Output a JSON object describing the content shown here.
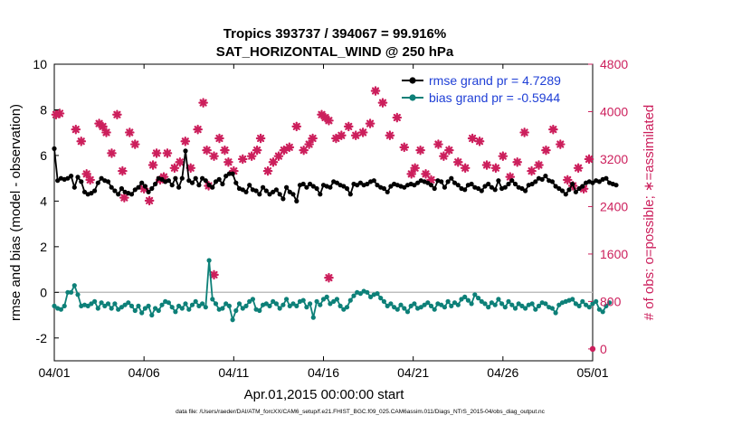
{
  "chart_data": {
    "type": "line",
    "title_lines": [
      "Tropics 393737 / 394067 = 99.916%",
      "SAT_HORIZONTAL_WIND @ 250 hPa"
    ],
    "xlabel": "Apr.01,2015 00:00:00 start",
    "ylabel_left": "rmse and bias (model - observation)",
    "ylabel_right": "# of obs: o=possible; ∗=assimilated",
    "footnote": "data file: /Users/raeder/DAI/ATM_forcXX/CAM6_setup/f.e21.FHIST_BGC.f09_025.CAM6assim.011/Diags_NTrS_2015-04/obs_diag_output.nc",
    "x_ticks": [
      "04/01",
      "04/06",
      "04/11",
      "04/16",
      "04/21",
      "04/26",
      "05/01"
    ],
    "x_tick_days": [
      0,
      5,
      10,
      15,
      20,
      25,
      30
    ],
    "xlim_days": [
      0,
      30
    ],
    "ylim_left": [
      -3,
      10
    ],
    "y_ticks_left": [
      -2,
      0,
      2,
      4,
      6,
      8,
      10
    ],
    "ylim_right": [
      -200,
      4800
    ],
    "y_ticks_right": [
      0,
      800,
      1600,
      2400,
      3200,
      4000,
      4800
    ],
    "legend_position": "top-right",
    "colors": {
      "rmse": "#000000",
      "bias": "#0d8078",
      "obs": "#cc1f5c",
      "right_axis": "#cc1f5c",
      "legend_text": "#1f3fd6",
      "zero_line": "#bfbfbf"
    },
    "series": [
      {
        "name": "rmse grand pr = 4.7289",
        "axis": "left",
        "values": [
          6.3,
          4.9,
          5.0,
          4.95,
          5.0,
          5.1,
          4.6,
          5.05,
          4.85,
          4.4,
          4.3,
          4.35,
          4.45,
          4.8,
          5.0,
          4.9,
          4.85,
          4.6,
          4.45,
          4.3,
          4.55,
          4.4,
          4.35,
          4.3,
          4.5,
          4.6,
          4.8,
          4.65,
          4.4,
          4.55,
          4.75,
          5.0,
          4.95,
          4.85,
          4.9,
          4.7,
          5.0,
          4.6,
          5.0,
          6.2,
          4.9,
          4.8,
          5.0,
          4.7,
          5.0,
          4.9,
          4.7,
          4.6,
          4.85,
          4.95,
          4.75,
          5.1,
          5.2,
          5.2,
          4.8,
          4.55,
          4.5,
          4.4,
          4.7,
          4.5,
          4.45,
          4.3,
          4.6,
          4.45,
          4.3,
          4.4,
          4.5,
          4.3,
          4.1,
          4.6,
          4.4,
          4.3,
          4.0,
          4.7,
          4.75,
          4.6,
          4.75,
          4.65,
          4.55,
          4.3,
          4.7,
          4.65,
          4.6,
          4.85,
          4.8,
          4.7,
          4.65,
          4.55,
          4.3,
          4.75,
          4.7,
          4.8,
          4.7,
          4.75,
          4.85,
          4.9,
          4.7,
          4.6,
          4.55,
          4.4,
          4.65,
          4.75,
          4.7,
          4.65,
          4.6,
          4.7,
          4.75,
          4.7,
          4.8,
          4.9,
          4.85,
          4.8,
          4.7,
          4.55,
          4.9,
          4.85,
          4.6,
          4.85,
          5.0,
          4.8,
          4.7,
          4.55,
          4.5,
          4.7,
          4.75,
          4.6,
          4.55,
          4.45,
          4.65,
          4.75,
          4.6,
          4.5,
          4.9,
          4.55,
          4.6,
          4.75,
          4.9,
          4.75,
          4.6,
          4.55,
          4.45,
          4.7,
          4.75,
          4.85,
          5.0,
          4.95,
          5.1,
          4.9,
          4.85,
          4.65,
          4.55,
          4.45,
          4.3,
          4.5,
          4.75,
          4.4,
          4.55,
          4.65,
          4.8,
          4.85,
          4.8,
          4.9,
          4.85,
          4.95,
          5.0,
          4.8,
          4.75,
          4.7
        ],
        "x_start_day": 0,
        "x_step_days": 0.1875
      },
      {
        "name": "bias grand pr = -0.5944",
        "axis": "left",
        "values": [
          -0.6,
          -0.7,
          -0.75,
          -0.6,
          0.0,
          0.0,
          0.3,
          -0.1,
          -0.6,
          -0.55,
          -0.6,
          -0.5,
          -0.4,
          -0.7,
          -0.45,
          -0.6,
          -0.5,
          -0.7,
          -0.5,
          -0.75,
          -0.65,
          -0.55,
          -0.45,
          -0.6,
          -0.8,
          -0.6,
          -0.9,
          -0.7,
          -0.6,
          -1.0,
          -0.7,
          -0.8,
          -0.55,
          -0.4,
          -0.45,
          -0.65,
          -0.85,
          -0.6,
          -0.7,
          -0.5,
          -0.75,
          -0.55,
          -0.4,
          -0.6,
          -0.5,
          -0.65,
          1.4,
          -0.3,
          -0.5,
          -0.75,
          -0.7,
          -0.5,
          -0.6,
          -1.2,
          -0.8,
          -0.5,
          -0.7,
          -0.6,
          -0.4,
          -0.3,
          -0.75,
          -0.8,
          -0.55,
          -0.5,
          -0.6,
          -0.4,
          -0.5,
          -0.7,
          -0.55,
          -0.3,
          -0.6,
          -0.5,
          -0.6,
          -0.4,
          -0.35,
          -0.65,
          -0.5,
          -1.1,
          -0.4,
          -0.55,
          -0.3,
          -0.2,
          -0.5,
          -0.4,
          -0.3,
          -0.6,
          -0.75,
          -0.65,
          -0.35,
          -0.15,
          0.0,
          -0.05,
          0.05,
          0.0,
          -0.2,
          -0.1,
          -0.05,
          -0.25,
          -0.4,
          -0.6,
          -0.5,
          -0.65,
          -0.75,
          -0.55,
          -0.7,
          -0.85,
          -0.6,
          -0.5,
          -0.7,
          -0.65,
          -0.55,
          -0.45,
          -0.6,
          -0.75,
          -0.5,
          -0.55,
          -0.65,
          -0.4,
          -0.6,
          -0.45,
          -0.55,
          -0.3,
          -0.2,
          -0.35,
          -0.5,
          -0.1,
          -0.25,
          -0.4,
          -0.5,
          -0.65,
          -0.45,
          -0.55,
          -0.3,
          -0.5,
          -0.65,
          -0.4,
          -0.55,
          -0.7,
          -0.5,
          -0.6,
          -0.7,
          -0.55,
          -0.5,
          -0.75,
          -0.6,
          -0.45,
          -0.5,
          -0.65,
          -0.7,
          -0.9,
          -0.55,
          -0.45,
          -0.4,
          -0.35,
          -0.3,
          -0.5,
          -0.6,
          -0.4,
          -0.55,
          -0.65,
          -0.5,
          -0.4,
          -0.75,
          -0.85,
          -0.6,
          -0.45
        ],
        "x_start_day": 0,
        "x_step_days": 0.1875
      },
      {
        "name": "",
        "kind": "obs_assimilated",
        "axis": "right",
        "points": [
          [
            0.1,
            3950
          ],
          [
            0.3,
            3970
          ],
          [
            1.2,
            3700
          ],
          [
            1.5,
            3500
          ],
          [
            1.8,
            2950
          ],
          [
            2.0,
            2850
          ],
          [
            2.5,
            3800
          ],
          [
            2.7,
            3750
          ],
          [
            2.9,
            3650
          ],
          [
            3.2,
            3300
          ],
          [
            3.5,
            3950
          ],
          [
            3.8,
            3000
          ],
          [
            3.9,
            2550
          ],
          [
            4.2,
            3650
          ],
          [
            4.5,
            3450
          ],
          [
            5.0,
            2700
          ],
          [
            5.3,
            2500
          ],
          [
            5.5,
            3100
          ],
          [
            5.7,
            3300
          ],
          [
            5.9,
            2850
          ],
          [
            6.1,
            2900
          ],
          [
            6.3,
            3300
          ],
          [
            6.7,
            3050
          ],
          [
            7.0,
            3150
          ],
          [
            7.3,
            3500
          ],
          [
            7.6,
            3050
          ],
          [
            8.0,
            3700
          ],
          [
            8.3,
            4150
          ],
          [
            8.5,
            3350
          ],
          [
            8.6,
            2750
          ],
          [
            8.9,
            3250
          ],
          [
            9.2,
            3550
          ],
          [
            9.5,
            3350
          ],
          [
            9.7,
            3150
          ],
          [
            10.0,
            3000
          ],
          [
            10.5,
            3200
          ],
          [
            11.0,
            3250
          ],
          [
            11.3,
            3350
          ],
          [
            11.5,
            3550
          ],
          [
            11.9,
            3000
          ],
          [
            12.2,
            3150
          ],
          [
            12.5,
            3250
          ],
          [
            12.8,
            3350
          ],
          [
            13.1,
            3400
          ],
          [
            13.5,
            3750
          ],
          [
            13.9,
            3350
          ],
          [
            14.2,
            3450
          ],
          [
            14.4,
            3550
          ],
          [
            14.9,
            3950
          ],
          [
            15.1,
            3900
          ],
          [
            15.3,
            3850
          ],
          [
            15.7,
            3550
          ],
          [
            16.0,
            3600
          ],
          [
            16.4,
            3750
          ],
          [
            16.8,
            3600
          ],
          [
            17.2,
            3650
          ],
          [
            17.6,
            3800
          ],
          [
            17.9,
            4350
          ],
          [
            18.3,
            4150
          ],
          [
            18.7,
            3600
          ],
          [
            19.1,
            3900
          ],
          [
            19.5,
            3400
          ],
          [
            19.9,
            2950
          ],
          [
            20.1,
            3050
          ],
          [
            20.4,
            3350
          ],
          [
            20.7,
            2950
          ],
          [
            21.0,
            2850
          ],
          [
            21.4,
            3450
          ],
          [
            21.7,
            3250
          ],
          [
            22.0,
            3350
          ],
          [
            22.5,
            3150
          ],
          [
            22.9,
            3050
          ],
          [
            23.3,
            3550
          ],
          [
            23.7,
            3500
          ],
          [
            24.1,
            3100
          ],
          [
            24.6,
            3050
          ],
          [
            25.0,
            3250
          ],
          [
            25.4,
            2900
          ],
          [
            25.8,
            3150
          ],
          [
            26.2,
            3650
          ],
          [
            26.6,
            3000
          ],
          [
            27.0,
            3100
          ],
          [
            27.4,
            3350
          ],
          [
            27.8,
            3700
          ],
          [
            28.2,
            3450
          ],
          [
            28.6,
            2850
          ],
          [
            28.9,
            2750
          ],
          [
            29.2,
            3050
          ],
          [
            29.5,
            2700
          ],
          [
            29.8,
            3200
          ],
          [
            8.9,
            1250
          ],
          [
            15.3,
            1200
          ]
        ]
      },
      {
        "name": "",
        "kind": "obs_possible_last",
        "axis": "right",
        "points": [
          [
            30,
            0
          ]
        ]
      }
    ]
  }
}
